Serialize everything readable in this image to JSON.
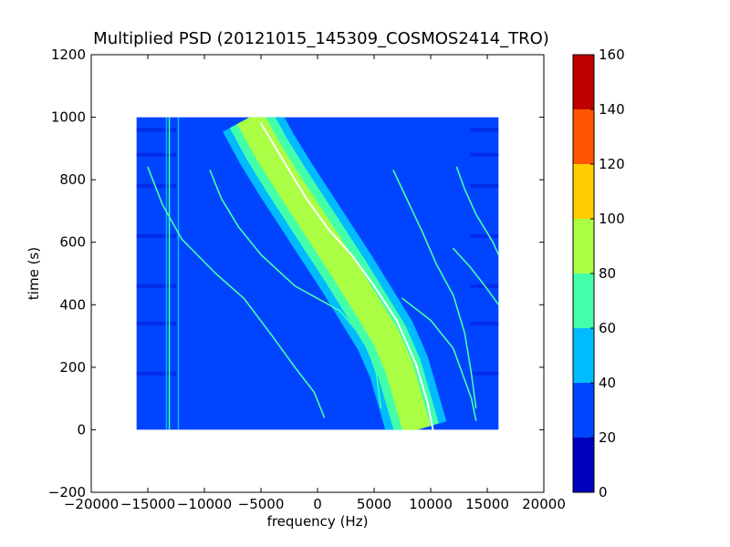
{
  "chart_data": {
    "type": "heatmap",
    "title": "Multiplied PSD (20121015_145309_COSMOS2414_TRO)",
    "xlabel": "frequency (Hz)",
    "ylabel": "time (s)",
    "xlim": [
      -20000,
      20000
    ],
    "ylim": [
      -200,
      1200
    ],
    "x_ticks": [
      -20000,
      -15000,
      -10000,
      -5000,
      0,
      5000,
      10000,
      15000,
      20000
    ],
    "x_tick_labels": [
      "−20000",
      "−15000",
      "−10000",
      "−5000",
      "0",
      "5000",
      "10000",
      "15000",
      "20000"
    ],
    "y_ticks": [
      -200,
      0,
      200,
      400,
      600,
      800,
      1000,
      1200
    ],
    "y_tick_labels": [
      "−200",
      "0",
      "200",
      "400",
      "600",
      "800",
      "1000",
      "1200"
    ],
    "data_extent": {
      "x": [
        -16000,
        16000
      ],
      "y": [
        0,
        1000
      ]
    },
    "background_level": 25,
    "colorbar": {
      "range": [
        0,
        160
      ],
      "ticks": [
        "0",
        "20",
        "40",
        "60",
        "80",
        "100",
        "120",
        "140",
        "160"
      ],
      "bins": [
        {
          "from": 0,
          "to": 20,
          "color": "#0000bf"
        },
        {
          "from": 20,
          "to": 40,
          "color": "#0044ff"
        },
        {
          "from": 40,
          "to": 60,
          "color": "#00bbff"
        },
        {
          "from": 60,
          "to": 80,
          "color": "#44ffaa"
        },
        {
          "from": 80,
          "to": 100,
          "color": "#aaff44"
        },
        {
          "from": 100,
          "to": 120,
          "color": "#ffcc00"
        },
        {
          "from": 120,
          "to": 140,
          "color": "#ff5500"
        },
        {
          "from": 140,
          "to": 160,
          "color": "#bf0000"
        }
      ]
    },
    "bands": [
      {
        "name": "main-doppler-curve",
        "level": 90,
        "points": [
          [
            -6000,
            1000
          ],
          [
            -4500,
            900
          ],
          [
            -2800,
            800
          ],
          [
            -1000,
            700
          ],
          [
            800,
            600
          ],
          [
            2600,
            500
          ],
          [
            4300,
            400
          ],
          [
            6000,
            300
          ],
          [
            7200,
            200
          ],
          [
            8000,
            100
          ],
          [
            8800,
            0
          ]
        ],
        "outer_halfwidth_hz": 2700,
        "mid_halfwidth_hz": 2000,
        "inner_halfwidth_hz": 1250
      }
    ],
    "traces": [
      {
        "name": "center-trace",
        "level": 150,
        "points": [
          [
            -5000,
            980
          ],
          [
            -3000,
            860
          ],
          [
            -1000,
            740
          ],
          [
            1000,
            640
          ],
          [
            3000,
            560
          ],
          [
            5000,
            460
          ],
          [
            7000,
            350
          ],
          [
            8700,
            210
          ],
          [
            9700,
            90
          ],
          [
            10200,
            0
          ]
        ]
      },
      {
        "name": "side-trace-a",
        "level": 60,
        "points": [
          [
            -15000,
            840
          ],
          [
            -13700,
            720
          ],
          [
            -12000,
            610
          ],
          [
            -9000,
            500
          ],
          [
            -6500,
            420
          ],
          [
            -4000,
            300
          ],
          [
            -2000,
            200
          ],
          [
            -300,
            120
          ],
          [
            600,
            40
          ]
        ]
      },
      {
        "name": "side-trace-b",
        "level": 60,
        "points": [
          [
            -9500,
            830
          ],
          [
            -8500,
            740
          ],
          [
            -7000,
            650
          ],
          [
            -5000,
            560
          ],
          [
            -2000,
            460
          ],
          [
            2000,
            380
          ],
          [
            4300,
            280
          ],
          [
            5200,
            180
          ],
          [
            5600,
            70
          ]
        ]
      },
      {
        "name": "side-trace-c",
        "level": 60,
        "points": [
          [
            6700,
            830
          ],
          [
            8000,
            730
          ],
          [
            9300,
            630
          ],
          [
            10500,
            530
          ],
          [
            12000,
            430
          ],
          [
            13000,
            310
          ],
          [
            13600,
            180
          ],
          [
            14000,
            70
          ]
        ]
      },
      {
        "name": "side-trace-d",
        "level": 60,
        "points": [
          [
            12300,
            840
          ],
          [
            13000,
            770
          ],
          [
            14000,
            690
          ],
          [
            15500,
            600
          ],
          [
            16000,
            560
          ]
        ]
      },
      {
        "name": "side-trace-e",
        "level": 60,
        "points": [
          [
            7500,
            420
          ],
          [
            10000,
            350
          ],
          [
            12000,
            260
          ],
          [
            13600,
            100
          ],
          [
            14000,
            30
          ]
        ]
      },
      {
        "name": "side-trace-f",
        "level": 60,
        "points": [
          [
            12000,
            580
          ],
          [
            13500,
            520
          ],
          [
            14800,
            460
          ],
          [
            16000,
            400
          ]
        ]
      }
    ],
    "vertical_lines": [
      {
        "x": -13100,
        "level": 60
      },
      {
        "x": -13350,
        "level": 40
      },
      {
        "x": -12300,
        "level": 40
      }
    ]
  }
}
